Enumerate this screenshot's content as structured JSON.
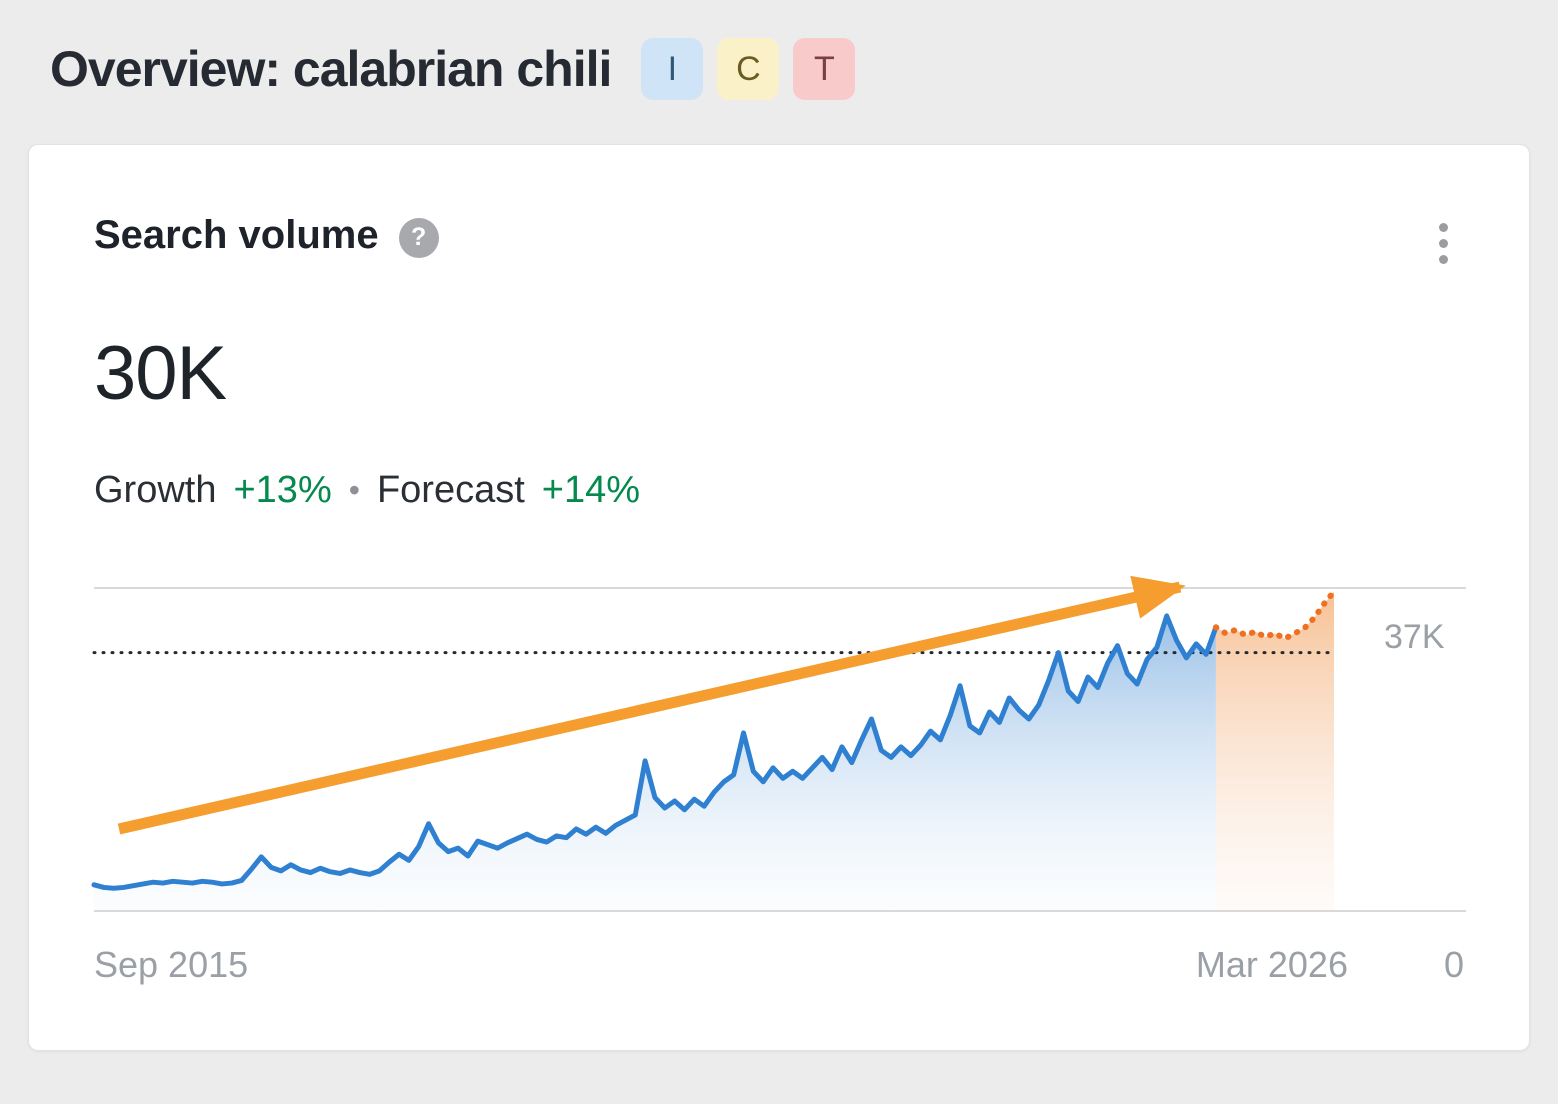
{
  "page": {
    "title": "Overview: calabrian chili",
    "badges": [
      {
        "label": "I",
        "bg": "#cfe4f6",
        "color": "#2f5876"
      },
      {
        "label": "C",
        "bg": "#faf1c9",
        "color": "#6a5b22"
      },
      {
        "label": "T",
        "bg": "#f8caca",
        "color": "#7c3f44"
      }
    ]
  },
  "card": {
    "title": "Search volume",
    "help_glyph": "?",
    "value": "30K",
    "growth_label": "Growth",
    "growth_value": "+13%",
    "separator": "•",
    "forecast_label": "Forecast",
    "forecast_value": "+14%",
    "accent_green": "#04894e"
  },
  "chart_data": {
    "type": "area",
    "title": "Search volume trend with forecast",
    "x_start_label": "Sep 2015",
    "x_end_label": "Mar 2026",
    "right_axis_labels": [
      "37K",
      "0"
    ],
    "ylim": [
      0,
      37
    ],
    "unit": "K",
    "reference_value": 29.6,
    "grid": "top-and-bottom-lines-only",
    "legend_position": "none",
    "history_x_range": [
      "Sep 2015",
      "Mar 2025"
    ],
    "forecast_x_range": [
      "Mar 2025",
      "Mar 2026"
    ],
    "colors": {
      "history_line": "#2f80d0",
      "forecast_line": "#f07022",
      "arrow": "#f59e2f",
      "reference_line": "#26292e",
      "grid_line": "#d9d9d9",
      "axis_text": "#9aa0a6"
    },
    "history": [
      3.0,
      2.7,
      2.6,
      2.7,
      2.9,
      3.1,
      3.3,
      3.2,
      3.4,
      3.3,
      3.2,
      3.4,
      3.3,
      3.1,
      3.2,
      3.5,
      4.8,
      6.2,
      5.0,
      4.6,
      5.3,
      4.7,
      4.4,
      4.9,
      4.5,
      4.3,
      4.7,
      4.4,
      4.2,
      4.6,
      5.6,
      6.5,
      5.8,
      7.4,
      10.0,
      7.8,
      6.8,
      7.2,
      6.3,
      8.0,
      7.6,
      7.2,
      7.8,
      8.3,
      8.8,
      8.2,
      7.9,
      8.6,
      8.4,
      9.4,
      8.8,
      9.6,
      8.9,
      9.8,
      10.4,
      11.0,
      17.2,
      13.0,
      11.8,
      12.6,
      11.6,
      12.8,
      12.0,
      13.6,
      14.8,
      15.6,
      20.4,
      16.0,
      14.8,
      16.4,
      15.2,
      16.0,
      15.2,
      16.4,
      17.6,
      16.2,
      18.8,
      17.0,
      19.6,
      22.0,
      18.4,
      17.6,
      18.8,
      17.8,
      19.0,
      20.6,
      19.6,
      22.4,
      25.8,
      21.2,
      20.4,
      22.8,
      21.6,
      24.4,
      23.0,
      22.0,
      23.6,
      26.4,
      29.6,
      25.2,
      24.0,
      26.8,
      25.6,
      28.4,
      30.4,
      27.2,
      26.0,
      28.8,
      30.2,
      33.8,
      31.0,
      29.0,
      30.6,
      29.4,
      32.5
    ],
    "forecast": [
      32.5,
      31.8,
      32.2,
      31.6,
      32.0,
      31.4,
      31.8,
      31.2,
      31.8,
      32.4,
      33.6,
      35.2,
      36.6
    ]
  }
}
